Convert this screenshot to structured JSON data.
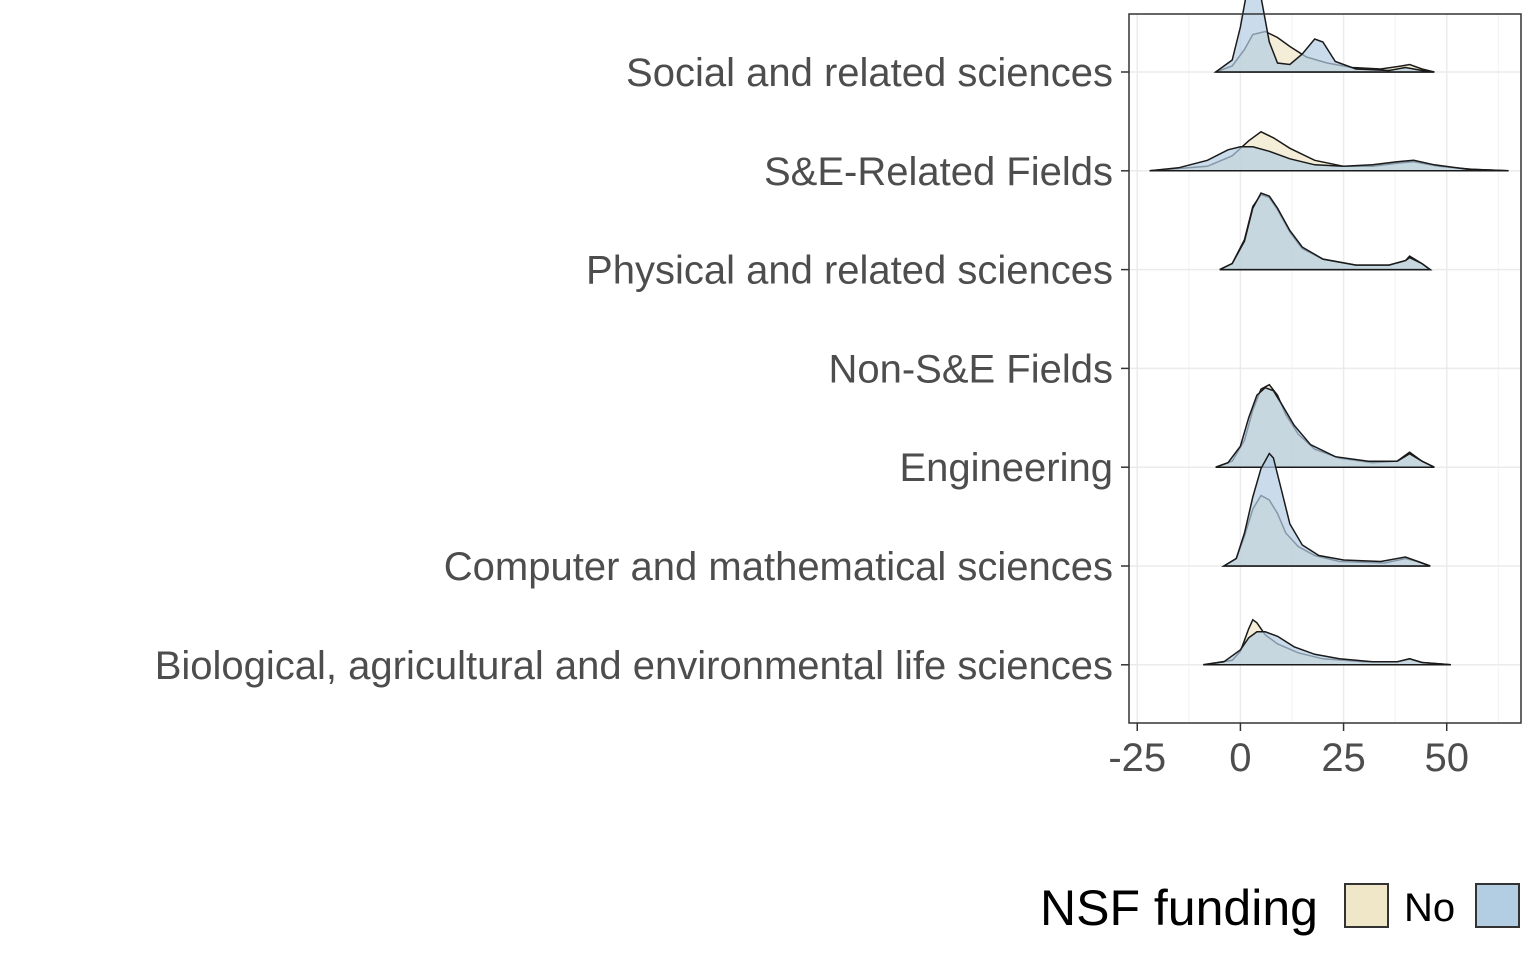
{
  "chart_data": {
    "type": "ridgeline-density",
    "title": "",
    "xlabel": "",
    "ylabel": "",
    "xlim": [
      -27,
      68
    ],
    "x_ticks": [
      -25,
      0,
      25,
      50
    ],
    "x_tick_labels": [
      "-25",
      "0",
      "25",
      "50"
    ],
    "grid": true,
    "categories": [
      "Biological, agricultural and environmental life sciences",
      "Computer and mathematical sciences",
      "Engineering",
      "Non-S&E Fields",
      "Physical and related sciences",
      "S&E-Related Fields",
      "Social and related sciences"
    ],
    "series": [
      {
        "name": "No",
        "color": "#f0e6c8",
        "densities": [
          {
            "category": "Biological, agricultural and environmental life sciences",
            "range": [
              -9,
              51
            ],
            "points": [
              [
                -9,
                0
              ],
              [
                -2,
                0.03
              ],
              [
                0,
                0.09
              ],
              [
                2,
                0.24
              ],
              [
                3,
                0.3
              ],
              [
                4,
                0.28
              ],
              [
                6,
                0.2
              ],
              [
                9,
                0.14
              ],
              [
                14,
                0.08
              ],
              [
                20,
                0.04
              ],
              [
                30,
                0.02
              ],
              [
                38,
                0.02
              ],
              [
                41,
                0.04
              ],
              [
                44,
                0.015
              ],
              [
                51,
                0
              ]
            ]
          },
          {
            "category": "Computer and mathematical sciences",
            "range": [
              -4,
              46
            ],
            "points": [
              [
                -4,
                0
              ],
              [
                -1,
                0.05
              ],
              [
                1,
                0.2
              ],
              [
                3,
                0.38
              ],
              [
                5,
                0.47
              ],
              [
                7,
                0.44
              ],
              [
                9,
                0.35
              ],
              [
                11,
                0.22
              ],
              [
                14,
                0.13
              ],
              [
                18,
                0.07
              ],
              [
                24,
                0.03
              ],
              [
                35,
                0.02
              ],
              [
                40,
                0.05
              ],
              [
                43,
                0.03
              ],
              [
                46,
                0
              ]
            ]
          },
          {
            "category": "Engineering",
            "range": [
              -6,
              47
            ],
            "points": [
              [
                -6,
                0
              ],
              [
                -2,
                0.04
              ],
              [
                1,
                0.18
              ],
              [
                3,
                0.38
              ],
              [
                5,
                0.52
              ],
              [
                7,
                0.55
              ],
              [
                9,
                0.48
              ],
              [
                11,
                0.35
              ],
              [
                14,
                0.22
              ],
              [
                18,
                0.12
              ],
              [
                24,
                0.06
              ],
              [
                32,
                0.03
              ],
              [
                38,
                0.04
              ],
              [
                41,
                0.1
              ],
              [
                44,
                0.04
              ],
              [
                47,
                0
              ]
            ]
          },
          {
            "category": "Physical and related sciences",
            "range": [
              -5,
              46
            ],
            "points": [
              [
                -5,
                0
              ],
              [
                -2,
                0.04
              ],
              [
                1,
                0.2
              ],
              [
                3,
                0.42
              ],
              [
                5,
                0.5
              ],
              [
                7,
                0.48
              ],
              [
                9,
                0.4
              ],
              [
                12,
                0.25
              ],
              [
                15,
                0.14
              ],
              [
                20,
                0.07
              ],
              [
                28,
                0.03
              ],
              [
                36,
                0.03
              ],
              [
                40,
                0.06
              ],
              [
                41,
                0.09
              ],
              [
                44,
                0.04
              ],
              [
                46,
                0
              ]
            ]
          },
          {
            "category": "S&E-Related Fields",
            "range": [
              -22,
              65
            ],
            "points": [
              [
                -22,
                0
              ],
              [
                -8,
                0.03
              ],
              [
                -2,
                0.1
              ],
              [
                2,
                0.2
              ],
              [
                5,
                0.26
              ],
              [
                8,
                0.22
              ],
              [
                12,
                0.15
              ],
              [
                18,
                0.07
              ],
              [
                25,
                0.03
              ],
              [
                32,
                0.03
              ],
              [
                38,
                0.05
              ],
              [
                42,
                0.06
              ],
              [
                48,
                0.03
              ],
              [
                56,
                0.01
              ],
              [
                65,
                0
              ]
            ]
          },
          {
            "category": "Social and related sciences",
            "range": [
              -6,
              47
            ],
            "points": [
              [
                -6,
                0
              ],
              [
                -2,
                0.04
              ],
              [
                1,
                0.15
              ],
              [
                3,
                0.25
              ],
              [
                6,
                0.27
              ],
              [
                9,
                0.23
              ],
              [
                12,
                0.17
              ],
              [
                16,
                0.1
              ],
              [
                21,
                0.06
              ],
              [
                27,
                0.03
              ],
              [
                34,
                0.02
              ],
              [
                39,
                0.04
              ],
              [
                41,
                0.05
              ],
              [
                44,
                0.02
              ],
              [
                47,
                0
              ]
            ]
          }
        ]
      },
      {
        "name": "",
        "color": "#b3cde3",
        "densities": [
          {
            "category": "Biological, agricultural and environmental life sciences",
            "range": [
              -9,
              51
            ],
            "points": [
              [
                -9,
                0
              ],
              [
                -4,
                0.02
              ],
              [
                0,
                0.1
              ],
              [
                2,
                0.18
              ],
              [
                4,
                0.22
              ],
              [
                6,
                0.22
              ],
              [
                9,
                0.19
              ],
              [
                13,
                0.12
              ],
              [
                18,
                0.07
              ],
              [
                24,
                0.04
              ],
              [
                32,
                0.02
              ],
              [
                38,
                0.02
              ],
              [
                41,
                0.04
              ],
              [
                44,
                0.015
              ],
              [
                51,
                0
              ]
            ]
          },
          {
            "category": "Computer and mathematical sciences",
            "range": [
              -4,
              46
            ],
            "points": [
              [
                -4,
                0
              ],
              [
                -1,
                0.05
              ],
              [
                1,
                0.22
              ],
              [
                3,
                0.46
              ],
              [
                5,
                0.65
              ],
              [
                7,
                0.75
              ],
              [
                8,
                0.72
              ],
              [
                10,
                0.5
              ],
              [
                12,
                0.28
              ],
              [
                15,
                0.14
              ],
              [
                19,
                0.07
              ],
              [
                25,
                0.04
              ],
              [
                34,
                0.03
              ],
              [
                40,
                0.06
              ],
              [
                43,
                0.03
              ],
              [
                46,
                0
              ]
            ]
          },
          {
            "category": "Engineering",
            "range": [
              -6,
              47
            ],
            "points": [
              [
                -6,
                0
              ],
              [
                -3,
                0.03
              ],
              [
                0,
                0.14
              ],
              [
                2,
                0.33
              ],
              [
                4,
                0.48
              ],
              [
                6,
                0.53
              ],
              [
                8,
                0.51
              ],
              [
                10,
                0.42
              ],
              [
                13,
                0.28
              ],
              [
                17,
                0.15
              ],
              [
                23,
                0.07
              ],
              [
                31,
                0.04
              ],
              [
                38,
                0.04
              ],
              [
                41,
                0.09
              ],
              [
                44,
                0.04
              ],
              [
                47,
                0
              ]
            ]
          },
          {
            "category": "Physical and related sciences",
            "range": [
              -5,
              46
            ],
            "points": [
              [
                -5,
                0
              ],
              [
                -2,
                0.04
              ],
              [
                1,
                0.19
              ],
              [
                3,
                0.41
              ],
              [
                5,
                0.51
              ],
              [
                7,
                0.49
              ],
              [
                9,
                0.41
              ],
              [
                12,
                0.26
              ],
              [
                15,
                0.15
              ],
              [
                20,
                0.07
              ],
              [
                28,
                0.03
              ],
              [
                36,
                0.03
              ],
              [
                40,
                0.06
              ],
              [
                41,
                0.08
              ],
              [
                44,
                0.04
              ],
              [
                46,
                0
              ]
            ]
          },
          {
            "category": "S&E-Related Fields",
            "range": [
              -22,
              65
            ],
            "points": [
              [
                -22,
                0
              ],
              [
                -15,
                0.02
              ],
              [
                -8,
                0.07
              ],
              [
                -3,
                0.14
              ],
              [
                0,
                0.16
              ],
              [
                3,
                0.16
              ],
              [
                7,
                0.13
              ],
              [
                12,
                0.08
              ],
              [
                18,
                0.04
              ],
              [
                25,
                0.03
              ],
              [
                32,
                0.04
              ],
              [
                38,
                0.06
              ],
              [
                42,
                0.07
              ],
              [
                47,
                0.04
              ],
              [
                55,
                0.01
              ],
              [
                65,
                0
              ]
            ]
          },
          {
            "category": "Social and related sciences",
            "range": [
              -6,
              47
            ],
            "points": [
              [
                -6,
                0
              ],
              [
                -2,
                0.08
              ],
              [
                0,
                0.3
              ],
              [
                1,
                0.45
              ],
              [
                2,
                0.6
              ],
              [
                3,
                0.64
              ],
              [
                5,
                0.5
              ],
              [
                7,
                0.2
              ],
              [
                9,
                0.06
              ],
              [
                12,
                0.05
              ],
              [
                15,
                0.12
              ],
              [
                18,
                0.22
              ],
              [
                20,
                0.2
              ],
              [
                23,
                0.07
              ],
              [
                28,
                0.02
              ],
              [
                36,
                0.01
              ],
              [
                40,
                0.03
              ],
              [
                44,
                0.01
              ],
              [
                47,
                0
              ]
            ]
          }
        ]
      }
    ],
    "legend": {
      "title": "NSF funding",
      "position": "bottom-right",
      "entries": [
        {
          "label": "No",
          "color": "#f0e6c8"
        },
        {
          "label": "",
          "color": "#b3cde3"
        }
      ]
    }
  }
}
